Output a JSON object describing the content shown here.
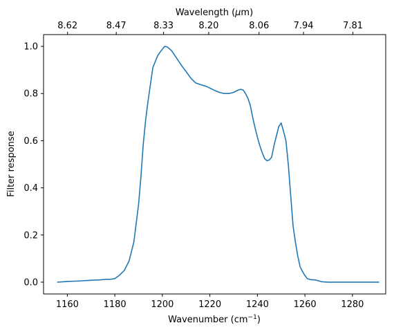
{
  "chart_data": {
    "type": "line",
    "xlabel": "Wavenumber (cm",
    "xlabel_unit_exp": "−1",
    "xlabel_close": ")",
    "ylabel": "Filter response",
    "top_xlabel_prefix": "Wavelength (",
    "top_xlabel_mu": "μ",
    "top_xlabel_suffix": "m)",
    "xlim": [
      1150,
      1294
    ],
    "ylim": [
      -0.05,
      1.05
    ],
    "grid": false,
    "legend": "none",
    "x_ticks": [
      1160,
      1180,
      1200,
      1220,
      1240,
      1260,
      1280
    ],
    "x_tick_labels": [
      "1160",
      "1180",
      "1200",
      "1220",
      "1240",
      "1260",
      "1280"
    ],
    "y_ticks": [
      0.0,
      0.2,
      0.4,
      0.6,
      0.8,
      1.0
    ],
    "y_tick_labels": [
      "0.0",
      "0.2",
      "0.4",
      "0.6",
      "0.8",
      "1.0"
    ],
    "top_ticks_wavenumber": [
      1160.1,
      1180.6,
      1200.5,
      1219.5,
      1240.7,
      1259.4,
      1280.2
    ],
    "top_tick_labels": [
      "8.62",
      "8.47",
      "8.33",
      "8.20",
      "8.06",
      "7.94",
      "7.81"
    ],
    "series": [
      {
        "color": "#1f77b4",
        "x": [
          1156,
          1160,
          1165,
          1170,
          1174,
          1176,
          1178,
          1180,
          1182,
          1184,
          1186,
          1188,
          1190,
          1191,
          1192,
          1193,
          1194,
          1195,
          1196,
          1197,
          1198,
          1199,
          1200,
          1201,
          1202,
          1203,
          1204,
          1205,
          1206,
          1207,
          1208,
          1210,
          1212,
          1214,
          1216,
          1218,
          1219,
          1220,
          1222,
          1224,
          1226,
          1228,
          1230,
          1232,
          1233,
          1234,
          1235,
          1236,
          1237,
          1238,
          1239,
          1240,
          1241,
          1242,
          1243,
          1244,
          1245,
          1246,
          1247,
          1248,
          1249,
          1250,
          1251,
          1252,
          1253,
          1254,
          1255,
          1256,
          1257,
          1258,
          1259,
          1260,
          1261,
          1262,
          1263,
          1264,
          1265,
          1266,
          1267,
          1268,
          1270,
          1275,
          1280,
          1285,
          1291
        ],
        "y": [
          0.0,
          0.003,
          0.005,
          0.008,
          0.01,
          0.012,
          0.012,
          0.015,
          0.03,
          0.05,
          0.09,
          0.17,
          0.33,
          0.45,
          0.59,
          0.69,
          0.77,
          0.84,
          0.91,
          0.935,
          0.96,
          0.975,
          0.988,
          1.0,
          0.998,
          0.99,
          0.98,
          0.965,
          0.95,
          0.935,
          0.92,
          0.893,
          0.865,
          0.845,
          0.838,
          0.832,
          0.828,
          0.823,
          0.813,
          0.805,
          0.8,
          0.8,
          0.805,
          0.815,
          0.818,
          0.815,
          0.8,
          0.78,
          0.75,
          0.7,
          0.655,
          0.615,
          0.58,
          0.55,
          0.525,
          0.515,
          0.518,
          0.53,
          0.58,
          0.62,
          0.66,
          0.675,
          0.64,
          0.6,
          0.5,
          0.37,
          0.24,
          0.17,
          0.11,
          0.065,
          0.045,
          0.028,
          0.015,
          0.012,
          0.01,
          0.01,
          0.008,
          0.005,
          0.002,
          0.001,
          0.0,
          0.0,
          0.0,
          0.0,
          0.0
        ]
      }
    ]
  }
}
